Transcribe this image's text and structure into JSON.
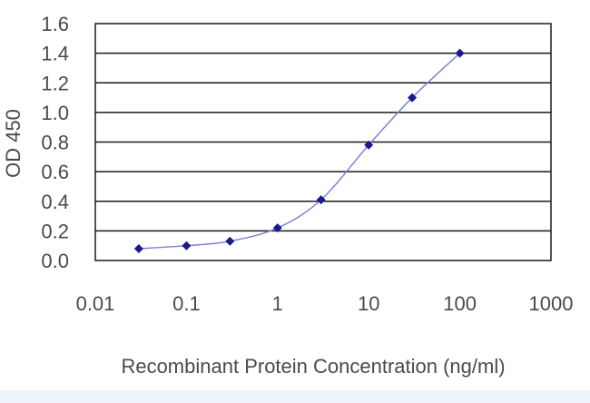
{
  "chart_data": {
    "type": "line",
    "xlabel": "Recombinant Protein Concentration (ng/ml)",
    "ylabel": "OD 450",
    "x_scale": "log",
    "xlim": [
      0.01,
      1000
    ],
    "ylim": [
      0,
      1.6
    ],
    "x_ticks": [
      "0.01",
      "0.1",
      "1",
      "10",
      "100",
      "1000"
    ],
    "y_ticks": [
      "0.0",
      "0.2",
      "0.4",
      "0.6",
      "0.8",
      "1.0",
      "1.2",
      "1.4",
      "1.6"
    ],
    "grid": "horizontal",
    "series": [
      {
        "x": [
          0.03,
          0.1,
          0.3,
          1,
          3,
          10,
          30,
          100
        ],
        "y": [
          0.08,
          0.1,
          0.13,
          0.22,
          0.41,
          0.78,
          1.1,
          1.4
        ]
      }
    ],
    "colors": {
      "line": "#8080d8",
      "marker": "#1a1a8c",
      "grid": "#1a1a1a",
      "text": "#4a4a4a"
    }
  }
}
